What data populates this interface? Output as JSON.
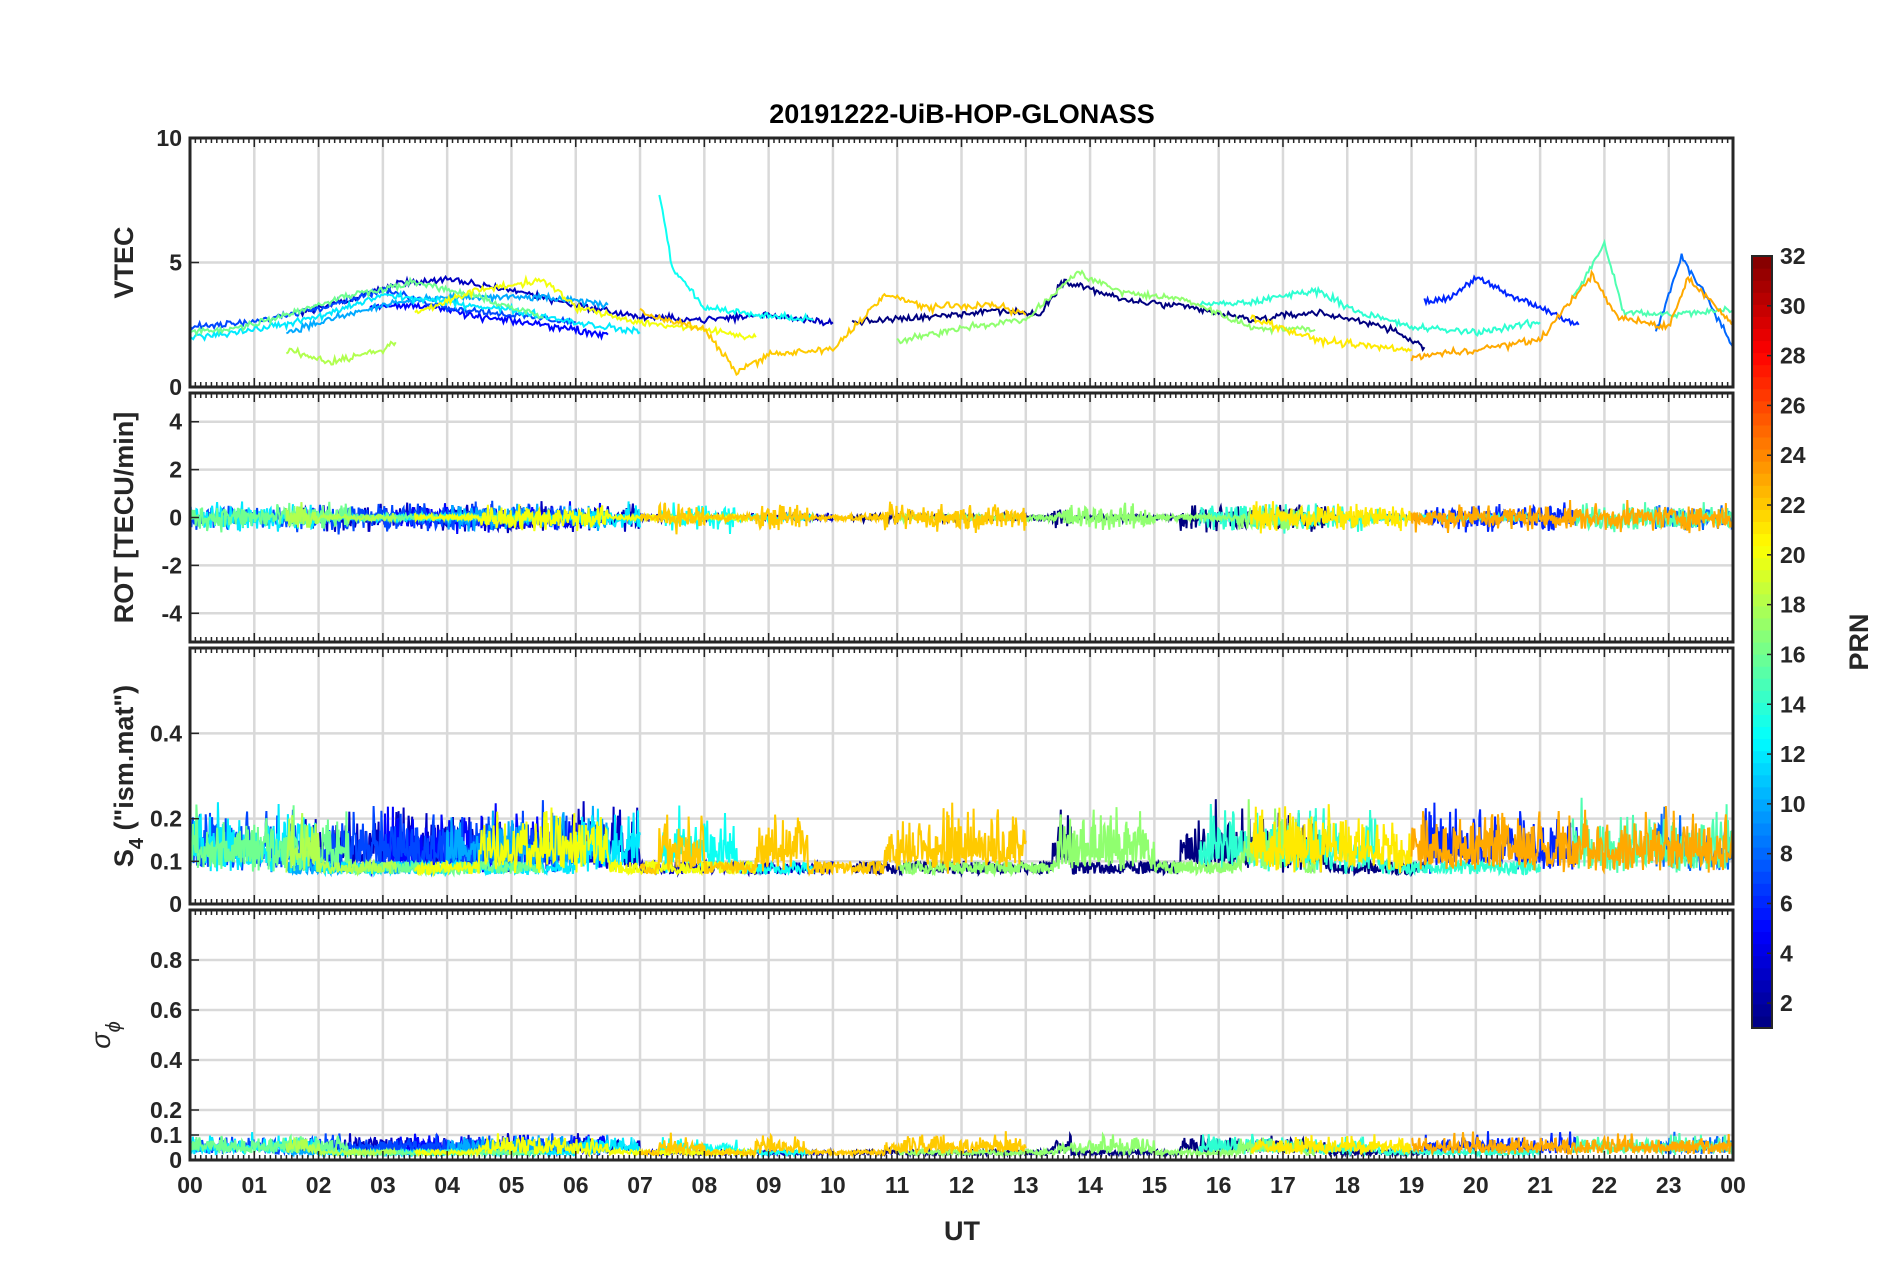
{
  "chart_data": {
    "type": "line",
    "title": "20191222-UiB-HOP-GLONASS",
    "xlabel": "UT",
    "x_tick_labels": [
      "00",
      "01",
      "02",
      "03",
      "04",
      "05",
      "06",
      "07",
      "08",
      "09",
      "10",
      "11",
      "12",
      "13",
      "14",
      "15",
      "16",
      "17",
      "18",
      "19",
      "20",
      "21",
      "22",
      "23",
      "00"
    ],
    "xlim": [
      0,
      24
    ],
    "grid": true,
    "colorbar": {
      "label": "PRN",
      "range": [
        1,
        32
      ],
      "colormap": "jet",
      "tick_labels": [
        "2",
        "4",
        "6",
        "8",
        "10",
        "12",
        "14",
        "16",
        "18",
        "20",
        "22",
        "24",
        "26",
        "28",
        "30",
        "32"
      ]
    },
    "panels": [
      {
        "ylabel": "VTEC",
        "ylim": [
          0,
          10
        ],
        "yticks": [
          0,
          5,
          10
        ]
      },
      {
        "ylabel": "ROT [TECU/min]",
        "ylim": [
          -5.2,
          5.2
        ],
        "yticks": [
          -4,
          -2,
          0,
          2,
          4
        ]
      },
      {
        "ylabel_main": "S",
        "ylabel_sub": "4",
        "ylabel_rest": " (\"ism.mat\")",
        "ylim": [
          0,
          0.6
        ],
        "yticks": [
          0,
          0.1,
          0.2,
          0.4
        ]
      },
      {
        "ylabel_main": "σ",
        "ylabel_sub": "ϕ",
        "ylim": [
          0,
          1
        ],
        "yticks": [
          0,
          0.1,
          0.2,
          0.4,
          0.6,
          0.8
        ]
      }
    ],
    "series": [
      {
        "prn": 1,
        "color_prn": 1,
        "vtec_path": [
          [
            10.3,
            2.6
          ],
          [
            11.5,
            2.8
          ],
          [
            12.5,
            3.1
          ],
          [
            13.2,
            2.9
          ],
          [
            13.6,
            4.3
          ],
          [
            14.5,
            3.5
          ],
          [
            15.5,
            3.2
          ],
          [
            16.5,
            2.7
          ],
          [
            17.5,
            3.0
          ],
          [
            18.5,
            2.5
          ],
          [
            19.2,
            1.6
          ]
        ],
        "active": [
          [
            3.0,
            6.5
          ],
          [
            13.4,
            13.7
          ],
          [
            15.4,
            17.7
          ],
          [
            20.5,
            21.5
          ]
        ]
      },
      {
        "prn": 3,
        "color_prn": 3,
        "vtec_path": [
          [
            1.7,
            3.0
          ],
          [
            2.5,
            3.5
          ],
          [
            3.3,
            4.2
          ],
          [
            4.0,
            4.3
          ],
          [
            5.0,
            3.9
          ],
          [
            6.0,
            3.3
          ],
          [
            7.0,
            2.8
          ],
          [
            8.0,
            2.7
          ],
          [
            9.0,
            2.9
          ],
          [
            10.0,
            2.6
          ]
        ],
        "active": [
          [
            1.5,
            7.0
          ],
          [
            15.2,
            16.0
          ]
        ]
      },
      {
        "prn": 5,
        "color_prn": 5,
        "vtec_path": [
          [
            2.8,
            3.2
          ],
          [
            3.6,
            3.3
          ],
          [
            4.5,
            2.8
          ],
          [
            5.5,
            2.5
          ],
          [
            6.5,
            2.1
          ]
        ],
        "active": [
          [
            3.0,
            6.5
          ],
          [
            21.5,
            22.6
          ]
        ]
      },
      {
        "prn": 6,
        "color_prn": 6,
        "vtec_path": [
          [
            19.2,
            3.4
          ],
          [
            19.6,
            3.6
          ],
          [
            20.0,
            4.4
          ],
          [
            20.5,
            3.7
          ],
          [
            21.0,
            3.2
          ],
          [
            21.6,
            2.5
          ]
        ],
        "active": [
          [
            19.2,
            21.6
          ]
        ]
      },
      {
        "prn": 7,
        "color_prn": 7,
        "vtec_path": [
          [
            0.0,
            2.4
          ],
          [
            1.0,
            2.6
          ],
          [
            2.0,
            3.2
          ],
          [
            3.0,
            3.9
          ],
          [
            4.0,
            3.2
          ],
          [
            5.0,
            2.9
          ],
          [
            6.0,
            2.6
          ]
        ],
        "active": [
          [
            0.0,
            6.0
          ],
          [
            23.0,
            24.0
          ]
        ]
      },
      {
        "prn": 8,
        "color_prn": 8,
        "vtec_path": [
          [
            22.8,
            2.2
          ],
          [
            23.2,
            5.2
          ],
          [
            23.6,
            3.6
          ],
          [
            24.0,
            1.6
          ]
        ],
        "active": [
          [
            22.8,
            24.0
          ]
        ]
      },
      {
        "prn": 10,
        "color_prn": 10,
        "vtec_path": [
          [
            1.5,
            2.2
          ],
          [
            2.3,
            2.8
          ],
          [
            3.2,
            3.4
          ],
          [
            4.2,
            3.6
          ],
          [
            5.5,
            3.6
          ],
          [
            6.5,
            3.3
          ]
        ],
        "active": [
          [
            4.0,
            6.8
          ],
          [
            11.5,
            12.5
          ]
        ]
      },
      {
        "prn": 12,
        "color_prn": 12,
        "vtec_path": [
          [
            0.0,
            2.0
          ],
          [
            1.0,
            2.3
          ],
          [
            2.0,
            2.8
          ],
          [
            3.0,
            3.7
          ],
          [
            4.0,
            3.4
          ],
          [
            5.0,
            3.1
          ],
          [
            6.0,
            2.6
          ],
          [
            7.0,
            2.2
          ]
        ],
        "active": [
          [
            0.0,
            2.0
          ],
          [
            6.0,
            7.0
          ],
          [
            16.0,
            19.0
          ]
        ]
      },
      {
        "prn": 13,
        "color_prn": 13,
        "vtec_path": [
          [
            7.3,
            7.8
          ],
          [
            7.5,
            4.8
          ],
          [
            8.0,
            3.2
          ],
          [
            8.8,
            2.9
          ],
          [
            9.7,
            2.7
          ]
        ],
        "active": [
          [
            7.3,
            8.5
          ]
        ]
      },
      {
        "prn": 14,
        "color_prn": 14,
        "vtec_path": [
          [
            15.7,
            3.3
          ],
          [
            16.5,
            3.4
          ],
          [
            17.5,
            3.9
          ],
          [
            18.2,
            3.0
          ],
          [
            19.0,
            2.4
          ],
          [
            20.0,
            2.2
          ],
          [
            21.0,
            2.6
          ]
        ],
        "active": [
          [
            15.5,
            18.5
          ],
          [
            21.5,
            22.5
          ]
        ]
      },
      {
        "prn": 15,
        "color_prn": 15,
        "vtec_path": [
          [
            21.5,
            3.5
          ],
          [
            22.0,
            5.8
          ],
          [
            22.3,
            3.0
          ],
          [
            23.0,
            2.9
          ],
          [
            24.0,
            3.1
          ]
        ],
        "active": [
          [
            21.5,
            24.0
          ]
        ]
      },
      {
        "prn": 16,
        "color_prn": 16,
        "vtec_path": [
          [
            0.0,
            2.2
          ],
          [
            0.8,
            2.4
          ],
          [
            1.6,
            3.0
          ],
          [
            2.5,
            3.7
          ],
          [
            3.5,
            4.2
          ],
          [
            4.5,
            3.6
          ],
          [
            5.5,
            2.8
          ]
        ],
        "active": [
          [
            0.0,
            2.5
          ],
          [
            13.5,
            14.2
          ],
          [
            22.8,
            24.0
          ]
        ]
      },
      {
        "prn": 17,
        "color_prn": 17,
        "vtec_path": [
          [
            11.0,
            1.8
          ],
          [
            12.0,
            2.4
          ],
          [
            13.0,
            2.7
          ],
          [
            13.8,
            4.6
          ],
          [
            14.5,
            3.8
          ],
          [
            15.5,
            3.5
          ],
          [
            16.5,
            2.4
          ],
          [
            17.5,
            2.3
          ]
        ],
        "active": [
          [
            13.5,
            15.0
          ],
          [
            16.3,
            17.3
          ]
        ]
      },
      {
        "prn": 18,
        "color_prn": 18,
        "vtec_path": [
          [
            1.5,
            1.5
          ],
          [
            2.2,
            1.0
          ],
          [
            3.0,
            1.5
          ],
          [
            3.2,
            1.8
          ]
        ],
        "active": [
          [
            0.8,
            2.0
          ],
          [
            4.8,
            6.5
          ]
        ]
      },
      {
        "prn": 20,
        "color_prn": 20,
        "vtec_path": [
          [
            3.5,
            3.0
          ],
          [
            4.5,
            3.9
          ],
          [
            5.5,
            4.3
          ],
          [
            6.0,
            3.2
          ],
          [
            7.0,
            2.6
          ],
          [
            8.0,
            2.3
          ],
          [
            8.8,
            2.0
          ]
        ],
        "active": [
          [
            4.5,
            6.5
          ],
          [
            17.0,
            19.0
          ]
        ]
      },
      {
        "prn": 21,
        "color_prn": 21,
        "vtec_path": [
          [
            16.5,
            2.8
          ],
          [
            17.5,
            1.9
          ],
          [
            18.5,
            1.6
          ],
          [
            19.0,
            1.5
          ]
        ],
        "active": [
          [
            16.5,
            19.0
          ]
        ]
      },
      {
        "prn": 22,
        "color_prn": 22,
        "vtec_path": [
          [
            7.0,
            3.0
          ],
          [
            8.0,
            2.3
          ],
          [
            8.5,
            0.6
          ],
          [
            9.0,
            1.3
          ],
          [
            10.0,
            1.5
          ],
          [
            10.8,
            3.7
          ],
          [
            11.5,
            3.2
          ],
          [
            12.5,
            3.3
          ],
          [
            13.0,
            2.9
          ]
        ],
        "active": [
          [
            7.3,
            8.0
          ],
          [
            8.8,
            9.6
          ],
          [
            10.8,
            13.0
          ]
        ]
      },
      {
        "prn": 23,
        "color_prn": 23,
        "vtec_path": [
          [
            19.0,
            1.2
          ],
          [
            20.0,
            1.5
          ],
          [
            21.0,
            1.9
          ],
          [
            21.8,
            4.5
          ],
          [
            22.2,
            2.8
          ],
          [
            23.0,
            2.4
          ],
          [
            23.3,
            4.4
          ],
          [
            24.0,
            2.5
          ]
        ],
        "active": [
          [
            19.0,
            24.0
          ]
        ]
      }
    ]
  }
}
